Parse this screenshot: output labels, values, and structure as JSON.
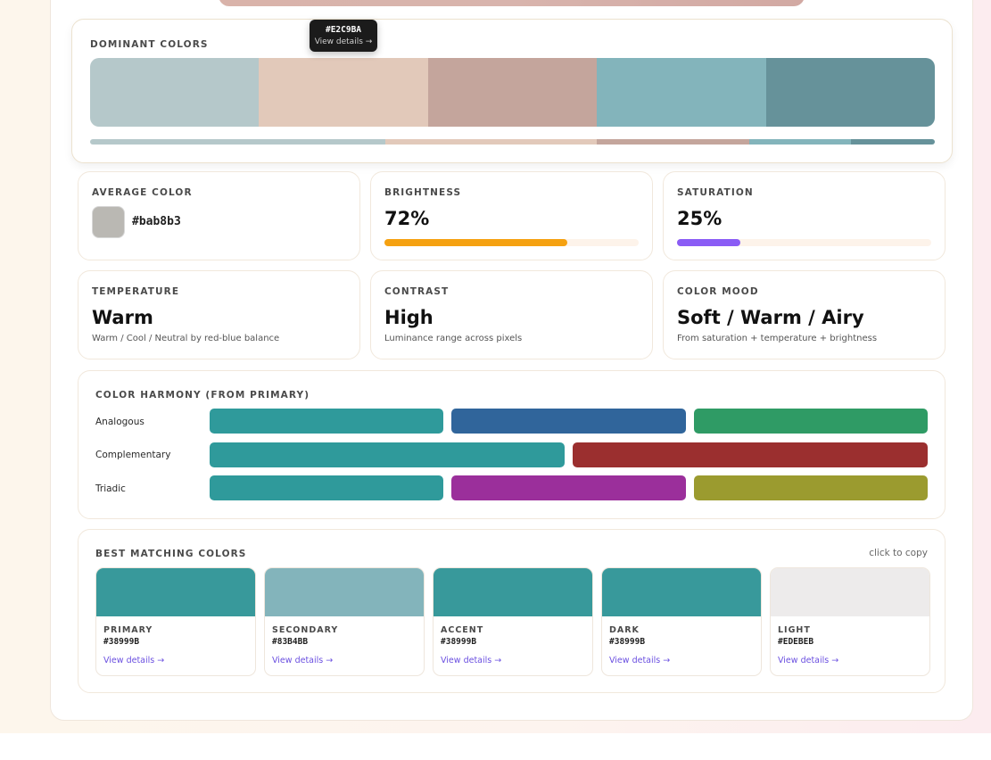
{
  "dominant": {
    "label": "DOMINANT COLORS",
    "swatches": [
      "#B5C8CA",
      "#E2C9BA",
      "#C4A59C",
      "#83B4BB",
      "#66929A"
    ],
    "proportions": [
      {
        "color": "#B5C8CA",
        "share": 0.349
      },
      {
        "color": "#E2C9BA",
        "share": 0.251
      },
      {
        "color": "#C4A59C",
        "share": 0.18
      },
      {
        "color": "#83B4BB",
        "share": 0.121
      },
      {
        "color": "#66929A",
        "share": 0.099
      }
    ],
    "tooltip": {
      "hex": "#E2C9BA",
      "link": "View details →"
    }
  },
  "stats": {
    "average": {
      "label": "AVERAGE COLOR",
      "hex": "#bab8b3",
      "color": "#bab8b3"
    },
    "brightness": {
      "label": "BRIGHTNESS",
      "value": "72%",
      "level": 0.72,
      "color": "#f5a111"
    },
    "saturation": {
      "label": "SATURATION",
      "value": "25%",
      "level": 0.25,
      "color": "#8a5cf5"
    },
    "temperature": {
      "label": "TEMPERATURE",
      "value": "Warm",
      "note": "Warm / Cool / Neutral by red-blue balance"
    },
    "contrast": {
      "label": "CONTRAST",
      "value": "High",
      "note": "Luminance range across pixels"
    },
    "mood": {
      "label": "COLOR MOOD",
      "value": "Soft / Warm / Airy",
      "note": "From saturation + temperature + brightness"
    }
  },
  "harmony": {
    "label": "COLOR HARMONY (FROM PRIMARY)",
    "rows": [
      {
        "name": "Analogous",
        "colors": [
          "#2F9A9B",
          "#30659B",
          "#2F9B65"
        ]
      },
      {
        "name": "Complementary",
        "colors": [
          "#2F9A9B",
          "#9B2F2F"
        ]
      },
      {
        "name": "Triadic",
        "colors": [
          "#2F9A9B",
          "#9B2F9B",
          "#9B9B2F"
        ]
      }
    ]
  },
  "matching": {
    "label": "BEST MATCHING COLORS",
    "hint": "click to copy",
    "items": [
      {
        "name": "PRIMARY",
        "hex": "#38999B",
        "color": "#38999B",
        "link": "View details →"
      },
      {
        "name": "SECONDARY",
        "hex": "#83B4BB",
        "color": "#83B4BB",
        "link": "View details →"
      },
      {
        "name": "ACCENT",
        "hex": "#38999B",
        "color": "#38999B",
        "link": "View details →"
      },
      {
        "name": "DARK",
        "hex": "#38999B",
        "color": "#38999B",
        "link": "View details →"
      },
      {
        "name": "LIGHT",
        "hex": "#EDEBEB",
        "color": "#EDEBEB",
        "link": "View details →"
      }
    ]
  }
}
